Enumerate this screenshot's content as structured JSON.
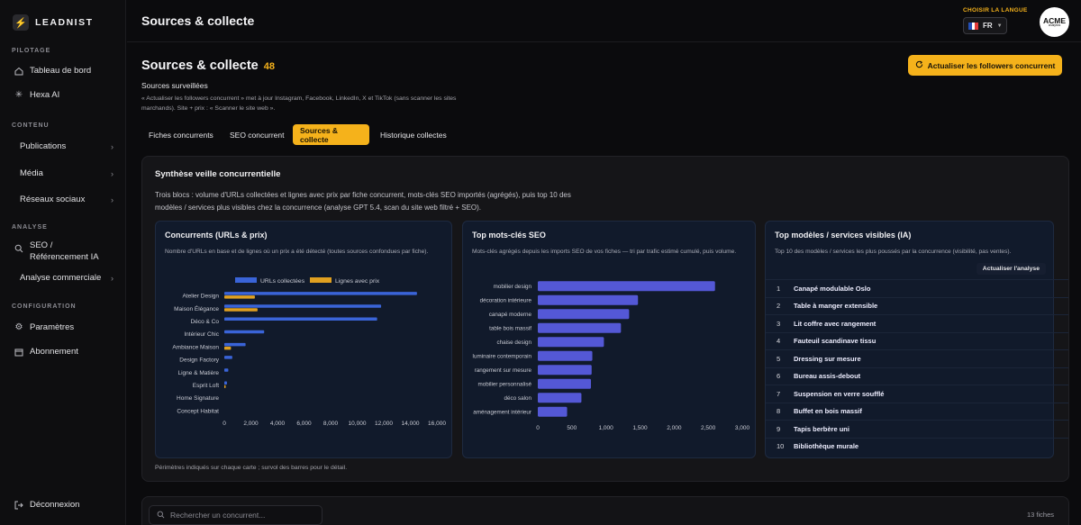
{
  "brand": {
    "name": "LEADNIST"
  },
  "sidebar": {
    "sections": {
      "pilotage": "PILOTAGE",
      "contenu": "CONTENU",
      "analyse": "ANALYSE",
      "configuration": "CONFIGURATION"
    },
    "items": [
      {
        "label": "Tableau de bord",
        "icon": "home-icon"
      },
      {
        "label": "Hexa AI",
        "icon": "sparkle-icon"
      },
      {
        "label": "Publications",
        "icon": "chevron-right-icon"
      },
      {
        "label": "Média",
        "icon": "chevron-right-icon"
      },
      {
        "label": "Réseaux sociaux",
        "icon": "chevron-right-icon"
      },
      {
        "label": "SEO / Référencement IA",
        "icon": "search-icon"
      },
      {
        "label": "Analyse commerciale",
        "icon": "chevron-right-icon"
      },
      {
        "label": "Paramètres",
        "icon": "gear-icon"
      },
      {
        "label": "Abonnement",
        "icon": "calendar-icon"
      },
      {
        "label": "Déconnexion",
        "icon": "logout-icon"
      }
    ]
  },
  "topbar": {
    "title": "Sources & collecte",
    "language_label": "CHOISIR LA LANGUE",
    "language_value": "FR",
    "avatar_text": "ACME",
    "avatar_sub": "analytics"
  },
  "header": {
    "title": "Sources & collecte",
    "count": "48",
    "refresh_label": "Actualiser les followers concurrent",
    "sources_label": "Sources surveillées",
    "sources_desc": "« Actualiser les followers concurrent » met à jour Instagram, Facebook, LinkedIn, X et TikTok (sans scanner les sites marchands). Site + prix : « Scanner le site web »."
  },
  "tabs": [
    {
      "label": "Fiches concurrents",
      "active": false
    },
    {
      "label": "SEO concurrent",
      "active": false
    },
    {
      "label": "Sources & collecte",
      "active": true
    },
    {
      "label": "Historique collectes",
      "active": false
    }
  ],
  "synthesis": {
    "title": "Synthèse veille concurrentielle",
    "desc": "Trois blocs : volume d'URLs collectées et lignes avec prix par fiche concurrent, mots-clés SEO importés (agrégés), puis top 10 des modèles / services plus visibles chez la concurrence (analyse GPT 5.4, scan du site web filtré + SEO).",
    "footer": "Périmètres indiqués sur chaque carte ; survol des barres pour le détail."
  },
  "cards": {
    "competitors": {
      "title": "Concurrents (URLs & prix)",
      "desc": "Nombre d'URLs en base et de lignes où un prix a été détecté (toutes sources confondues par fiche)."
    },
    "keywords": {
      "title": "Top mots-clés SEO",
      "desc": "Mots-clés agrégés depuis les imports SEO de vos fiches — tri par trafic estimé cumulé, puis volume."
    },
    "models": {
      "title": "Top modèles / services visibles (IA)",
      "desc": "Top 10 des modèles / services les plus poussés par la concurrence (visibilité, pas ventes).",
      "button": "Actualiser l'analyse",
      "items": [
        {
          "rank": "1",
          "name": "Canapé modulable Oslo"
        },
        {
          "rank": "2",
          "name": "Table à manger extensible"
        },
        {
          "rank": "3",
          "name": "Lit coffre avec rangement"
        },
        {
          "rank": "4",
          "name": "Fauteuil scandinave tissu"
        },
        {
          "rank": "5",
          "name": "Dressing sur mesure"
        },
        {
          "rank": "6",
          "name": "Bureau assis-debout"
        },
        {
          "rank": "7",
          "name": "Suspension en verre soufflé"
        },
        {
          "rank": "8",
          "name": "Buffet en bois massif"
        },
        {
          "rank": "9",
          "name": "Tapis berbère uni"
        },
        {
          "rank": "10",
          "name": "Bibliothèque murale"
        }
      ]
    }
  },
  "search": {
    "placeholder": "Rechercher un concurrent...",
    "count_label": "13 fiches"
  },
  "colors": {
    "accent": "#f5b21b",
    "bar_urls": "#3a64d8",
    "bar_prices": "#e0a020",
    "bar_keywords": "#5458d6"
  },
  "chart_data": [
    {
      "type": "bar",
      "orientation": "horizontal",
      "categories": [
        "Atelier Design",
        "Maison Élégance",
        "Déco & Co",
        "Intérieur Chic",
        "Ambiance Maison",
        "Design Factory",
        "Ligne & Matière",
        "Esprit Loft",
        "Home Signature",
        "Concept Habitat"
      ],
      "series": [
        {
          "name": "URLs collectées",
          "values": [
            14500,
            11800,
            11500,
            3000,
            1600,
            600,
            300,
            200,
            0,
            0
          ]
        },
        {
          "name": "Lignes avec prix",
          "values": [
            2300,
            2500,
            0,
            0,
            500,
            0,
            0,
            100,
            0,
            0
          ]
        }
      ],
      "xlim": [
        0,
        16000
      ],
      "xticks": [
        "0",
        "2,000",
        "4,000",
        "6,000",
        "8,000",
        "10,000",
        "12,000",
        "14,000",
        "16,000"
      ],
      "legend": "top"
    },
    {
      "type": "bar",
      "orientation": "horizontal",
      "categories": [
        "mobilier design",
        "décoration intérieure",
        "canapé moderne",
        "table bois massif",
        "chaise design",
        "luminaire contemporain",
        "rangement sur mesure",
        "mobilier personnalisé",
        "déco salon",
        "aménagement intérieur"
      ],
      "values": [
        2600,
        1470,
        1340,
        1220,
        970,
        800,
        790,
        780,
        640,
        430
      ],
      "xlim": [
        0,
        3000
      ],
      "xticks": [
        "0",
        "500",
        "1,000",
        "1,500",
        "2,000",
        "2,500",
        "3,000"
      ]
    }
  ]
}
